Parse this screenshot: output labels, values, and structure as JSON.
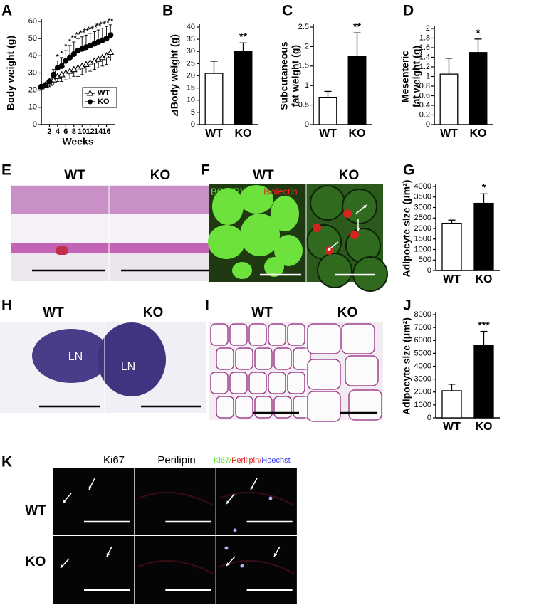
{
  "chart_data": [
    {
      "type": "line",
      "panel": "A",
      "ylabel": "Body weight (g)",
      "xlabel": "Weeks",
      "x": [
        0,
        1,
        2,
        3,
        4,
        5,
        6,
        7,
        8,
        9,
        10,
        11,
        12,
        13,
        14,
        15,
        16,
        17
      ],
      "xlim": [
        0,
        18
      ],
      "xticks": [
        2,
        4,
        6,
        8,
        10,
        12,
        14,
        16
      ],
      "ylim": [
        0,
        60
      ],
      "yticks": [
        0,
        10,
        20,
        30,
        40,
        50,
        60
      ],
      "legend": "lower right",
      "series": [
        {
          "name": "WT",
          "color": "#000000",
          "marker": "triangle-open",
          "values": [
            22,
            23,
            24,
            26,
            28,
            29,
            30,
            31,
            32,
            33,
            34,
            35,
            36,
            37,
            38,
            39,
            40,
            42
          ],
          "errors": [
            1,
            1,
            2,
            3,
            3,
            4,
            4,
            4,
            4,
            5,
            5,
            5,
            5,
            5,
            5,
            5,
            5,
            5
          ]
        },
        {
          "name": "KO",
          "color": "#000000",
          "marker": "circle-filled",
          "values": [
            22,
            23,
            25,
            29,
            33,
            34,
            37,
            39,
            41,
            43,
            44,
            45,
            46,
            47,
            48,
            49,
            50,
            52
          ],
          "errors": [
            1,
            1,
            2,
            3,
            4,
            5,
            6,
            7,
            7,
            7,
            7,
            7,
            7,
            7,
            7,
            7,
            7,
            6
          ]
        }
      ],
      "annotations": [
        {
          "x": 4,
          "text": "*"
        },
        {
          "x": 5,
          "text": "*"
        },
        {
          "x": 6,
          "text": "*"
        },
        {
          "x": 7,
          "text": "*"
        },
        {
          "x": 8,
          "text": "**"
        },
        {
          "x": 9,
          "text": "**"
        },
        {
          "x": 10,
          "text": "**"
        },
        {
          "x": 11,
          "text": "**"
        },
        {
          "x": 12,
          "text": "**"
        },
        {
          "x": 13,
          "text": "**"
        },
        {
          "x": 14,
          "text": "**"
        },
        {
          "x": 15,
          "text": "**"
        },
        {
          "x": 16,
          "text": "**"
        },
        {
          "x": 17,
          "text": "**"
        }
      ]
    },
    {
      "type": "bar",
      "panel": "B",
      "ylabel": [
        "⊿Body weight (g)"
      ],
      "categories": [
        "WT",
        "KO"
      ],
      "values": [
        21,
        30
      ],
      "errors": [
        5,
        3.5
      ],
      "colors": [
        "#ffffff",
        "#000000"
      ],
      "ylim": [
        0,
        40
      ],
      "yticks": [
        0,
        5,
        10,
        15,
        20,
        25,
        30,
        35,
        40
      ],
      "significance": "**"
    },
    {
      "type": "bar",
      "panel": "C",
      "ylabel": [
        "Subcutaneous",
        "fat weight (g)"
      ],
      "categories": [
        "WT",
        "KO"
      ],
      "values": [
        0.7,
        1.75
      ],
      "errors": [
        0.15,
        0.6
      ],
      "colors": [
        "#ffffff",
        "#000000"
      ],
      "ylim": [
        0,
        2.5
      ],
      "yticks": [
        0,
        0.5,
        1,
        1.5,
        2,
        2.5
      ],
      "significance": "**"
    },
    {
      "type": "bar",
      "panel": "D",
      "ylabel": [
        "Mesenteric",
        "fat weight (g)"
      ],
      "categories": [
        "WT",
        "KO"
      ],
      "values": [
        1.05,
        1.5
      ],
      "errors": [
        0.33,
        0.28
      ],
      "colors": [
        "#ffffff",
        "#000000"
      ],
      "ylim": [
        0,
        2
      ],
      "yticks": [
        0,
        0.2,
        0.4,
        0.6,
        0.8,
        1,
        1.2,
        1.4,
        1.6,
        1.8,
        2
      ],
      "significance": "*"
    },
    {
      "type": "bar",
      "panel": "G",
      "ylabel": [
        "Adipocyte size (μm²)"
      ],
      "categories": [
        "WT",
        "KO"
      ],
      "values": [
        2250,
        3200
      ],
      "errors": [
        150,
        450
      ],
      "colors": [
        "#ffffff",
        "#000000"
      ],
      "ylim": [
        0,
        4000
      ],
      "yticks": [
        0,
        500,
        1000,
        1500,
        2000,
        2500,
        3000,
        3500,
        4000
      ],
      "significance": "*"
    },
    {
      "type": "bar",
      "panel": "J",
      "ylabel": [
        "Adipocyte size (μm²)"
      ],
      "categories": [
        "WT",
        "KO"
      ],
      "values": [
        2100,
        5600
      ],
      "errors": [
        500,
        1100
      ],
      "colors": [
        "#ffffff",
        "#000000"
      ],
      "ylim": [
        0,
        8000
      ],
      "yticks": [
        0,
        1000,
        2000,
        3000,
        4000,
        5000,
        6000,
        7000,
        8000
      ],
      "significance": "***"
    }
  ],
  "images": [
    {
      "panel": "E",
      "labels": [
        "WT",
        "KO"
      ]
    },
    {
      "panel": "F",
      "labels": [
        "WT",
        "KO"
      ],
      "stain": [
        "BODIPY/",
        "Isolectin"
      ]
    },
    {
      "panel": "H",
      "labels": [
        "WT",
        "KO"
      ],
      "regions": [
        "LN",
        "LN"
      ]
    },
    {
      "panel": "I",
      "labels": [
        "WT",
        "KO"
      ]
    },
    {
      "panel": "K",
      "columns": [
        "Ki67",
        "Perilipin"
      ],
      "merge": [
        "Ki67/",
        "Perilipin/",
        "Hoechst"
      ],
      "rows": [
        "WT",
        "KO"
      ]
    }
  ]
}
